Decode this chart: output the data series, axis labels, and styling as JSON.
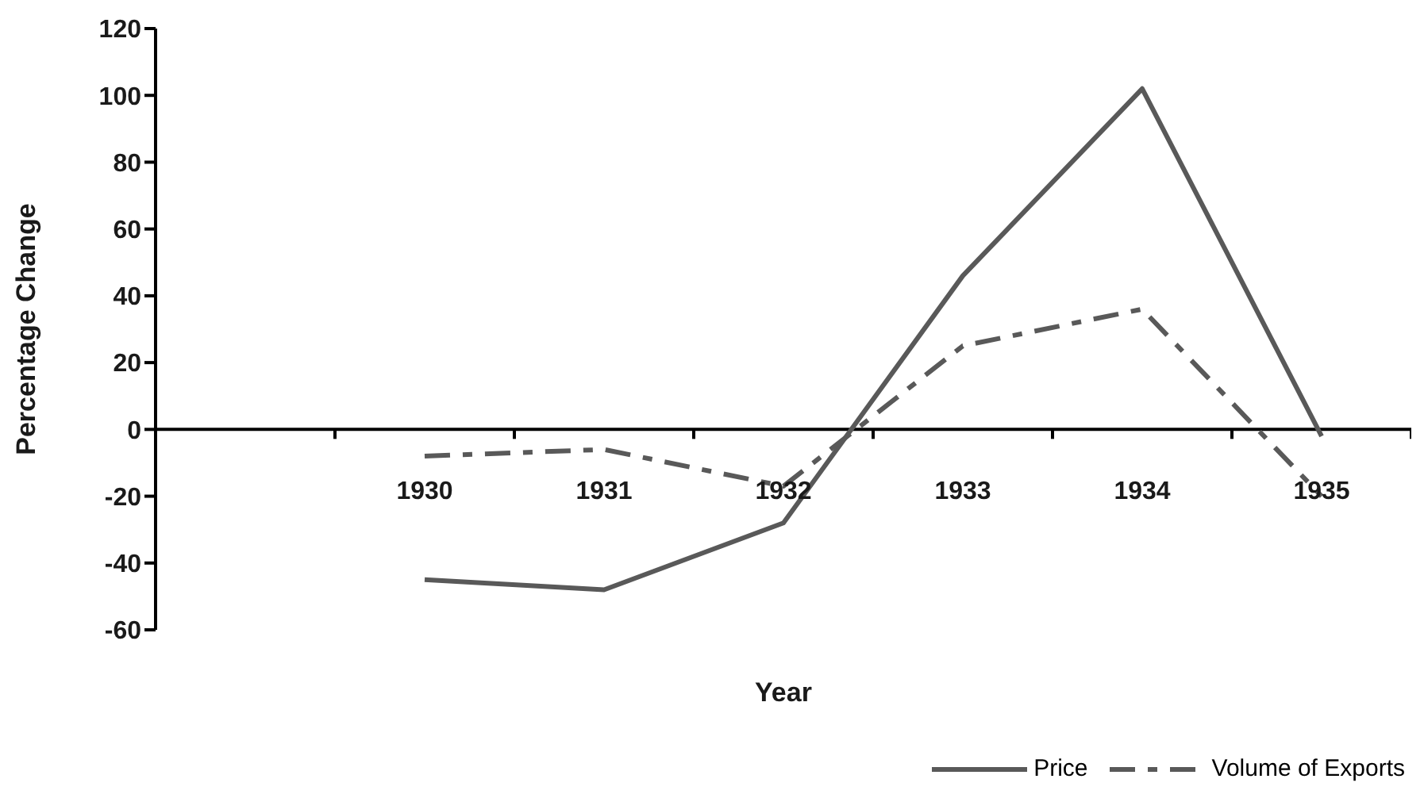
{
  "chart_data": {
    "type": "line",
    "xlabel": "Year",
    "ylabel": "Percentage Change",
    "categories": [
      null,
      "1930",
      "1931",
      "1932",
      "1933",
      "1934",
      "1935"
    ],
    "series": [
      {
        "name": "Price",
        "color": "#595959",
        "line_style": "solid",
        "values": [
          null,
          -45,
          -48,
          -28,
          46,
          102,
          -2
        ]
      },
      {
        "name": "Volume of Exports",
        "color": "#595959",
        "line_style": "dashed",
        "values": [
          null,
          -8,
          -6,
          -17,
          25,
          36,
          -20
        ]
      }
    ],
    "ylim": [
      -60,
      120
    ],
    "yticks": [
      -60,
      -40,
      -20,
      0,
      20,
      40,
      60,
      80,
      100,
      120
    ],
    "grid": false,
    "legend": "bottom right",
    "marker": "none"
  }
}
